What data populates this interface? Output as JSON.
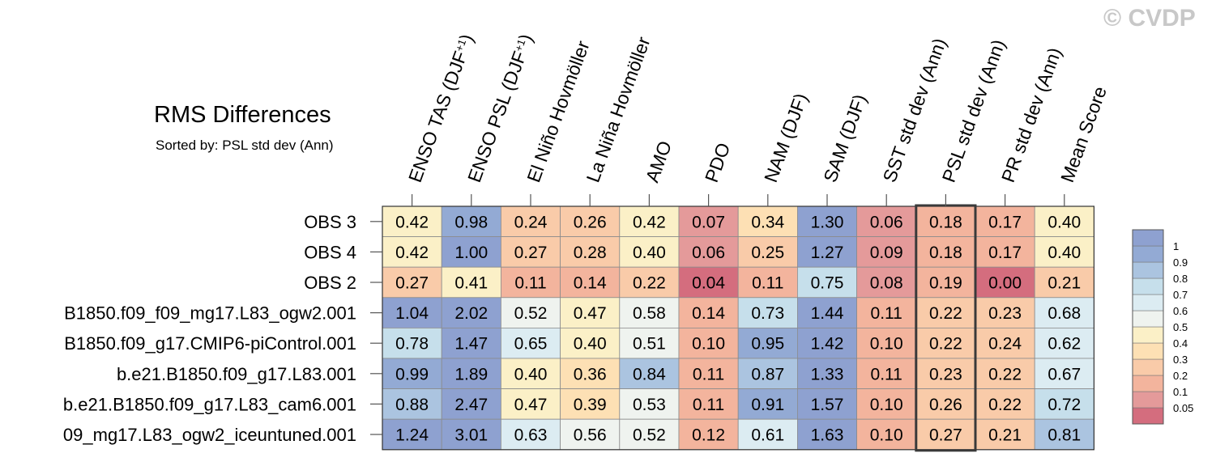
{
  "watermark": "© CVDP",
  "chart_data": {
    "type": "heatmap",
    "title": "RMS Differences",
    "subtitle": "Sorted by: PSL std dev (Ann)",
    "columns": [
      "ENSO TAS (DJF+1)",
      "ENSO PSL (DJF+1)",
      "El Niño Hovmöller",
      "La Niña Hovmöller",
      "AMO",
      "PDO",
      "NAM (DJF)",
      "SAM (DJF)",
      "SST std dev (Ann)",
      "PSL std dev (Ann)",
      "PR std dev (Ann)",
      "Mean Score"
    ],
    "column_labels": [
      {
        "base": "ENSO TAS (DJF",
        "sup": "+1",
        "tail": ")"
      },
      {
        "base": "ENSO PSL (DJF",
        "sup": "+1",
        "tail": ")"
      },
      {
        "base": "El Niño Hovmöller",
        "sup": "",
        "tail": ""
      },
      {
        "base": "La Niña Hovmöller",
        "sup": "",
        "tail": ""
      },
      {
        "base": "AMO",
        "sup": "",
        "tail": ""
      },
      {
        "base": "PDO",
        "sup": "",
        "tail": ""
      },
      {
        "base": "NAM (DJF)",
        "sup": "",
        "tail": ""
      },
      {
        "base": "SAM (DJF)",
        "sup": "",
        "tail": ""
      },
      {
        "base": "SST std dev (Ann)",
        "sup": "",
        "tail": ""
      },
      {
        "base": "PSL std dev (Ann)",
        "sup": "",
        "tail": ""
      },
      {
        "base": "PR std dev (Ann)",
        "sup": "",
        "tail": ""
      },
      {
        "base": "Mean Score",
        "sup": "",
        "tail": ""
      }
    ],
    "rows": [
      "OBS 3",
      "OBS 4",
      "OBS 2",
      "B1850.f09_f09_mg17.L83_ogw2.001",
      "B1850.f09_g17.CMIP6-piControl.001",
      "b.e21.B1850.f09_g17.L83.001",
      "b.e21.B1850.f09_g17.L83_cam6.001",
      "09_mg17.L83_ogw2_iceuntuned.001"
    ],
    "values": [
      [
        "0.42",
        "0.98",
        "0.24",
        "0.26",
        "0.42",
        "0.07",
        "0.34",
        "1.30",
        "0.06",
        "0.18",
        "0.17",
        "0.40"
      ],
      [
        "0.42",
        "1.00",
        "0.27",
        "0.28",
        "0.40",
        "0.06",
        "0.25",
        "1.27",
        "0.09",
        "0.18",
        "0.17",
        "0.40"
      ],
      [
        "0.27",
        "0.41",
        "0.11",
        "0.14",
        "0.22",
        "0.04",
        "0.11",
        "0.75",
        "0.08",
        "0.19",
        "0.00",
        "0.21"
      ],
      [
        "1.04",
        "2.02",
        "0.52",
        "0.47",
        "0.58",
        "0.14",
        "0.73",
        "1.44",
        "0.11",
        "0.22",
        "0.23",
        "0.68"
      ],
      [
        "0.78",
        "1.47",
        "0.65",
        "0.40",
        "0.51",
        "0.10",
        "0.95",
        "1.42",
        "0.10",
        "0.22",
        "0.24",
        "0.62"
      ],
      [
        "0.99",
        "1.89",
        "0.40",
        "0.36",
        "0.84",
        "0.11",
        "0.87",
        "1.33",
        "0.11",
        "0.23",
        "0.22",
        "0.67"
      ],
      [
        "0.88",
        "2.47",
        "0.47",
        "0.39",
        "0.53",
        "0.11",
        "0.91",
        "1.57",
        "0.10",
        "0.26",
        "0.22",
        "0.72"
      ],
      [
        "1.24",
        "3.01",
        "0.63",
        "0.56",
        "0.52",
        "0.12",
        "0.61",
        "1.63",
        "0.10",
        "0.27",
        "0.21",
        "0.81"
      ]
    ],
    "highlighted_column": "PSL std dev (Ann)",
    "colorbar": {
      "ticks": [
        "1",
        "0.9",
        "0.8",
        "0.7",
        "0.6",
        "0.5",
        "0.4",
        "0.3",
        "0.2",
        "0.1",
        "0.05"
      ],
      "levels": [
        0.05,
        0.1,
        0.2,
        0.3,
        0.4,
        0.5,
        0.6,
        0.7,
        0.8,
        0.9,
        1
      ],
      "colors": [
        "#d46d7e",
        "#e49a9a",
        "#f3b49d",
        "#f9cba9",
        "#fde0b4",
        "#fbf0c7",
        "#eff3ef",
        "#dcecf2",
        "#c6dfeb",
        "#abc4e0",
        "#93aad4",
        "#8ea1d0"
      ]
    }
  }
}
